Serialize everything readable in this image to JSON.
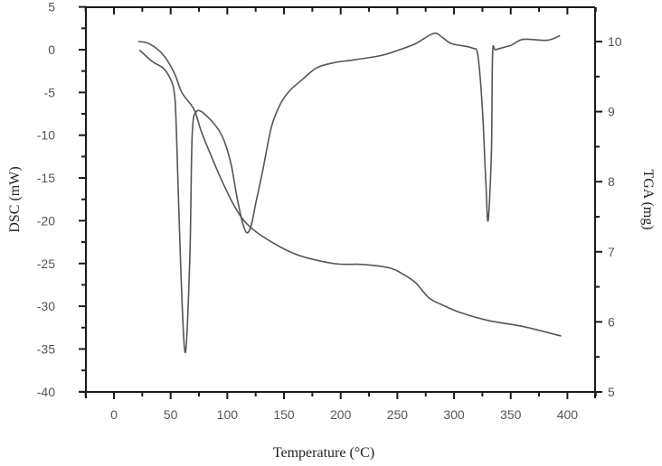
{
  "chart_data": {
    "type": "line",
    "title": "",
    "xlabel": "Temperature (°C)",
    "ylabel": "DSC (mW)",
    "y2label": "TGA (mg)",
    "xlim": [
      -25,
      425
    ],
    "ylim": [
      -40,
      5
    ],
    "y2lim": [
      5,
      10.5
    ],
    "grid": false,
    "legend": null,
    "x_ticks": [
      0,
      50,
      100,
      150,
      200,
      250,
      300,
      350,
      400
    ],
    "y_ticks": [
      5,
      0,
      -5,
      -10,
      -15,
      -20,
      -25,
      -30,
      -35,
      -40
    ],
    "y2_ticks": [
      10,
      9,
      8,
      7,
      6,
      5
    ],
    "series": [
      {
        "name": "DSC",
        "axis": "left",
        "x": [
          23,
          34,
          43,
          49,
          53,
          55,
          59,
          63,
          67,
          69,
          73,
          83,
          95,
          103,
          108,
          113,
          117,
          121,
          125,
          131,
          139,
          147,
          155,
          167,
          179,
          195,
          211,
          235,
          250,
          266,
          282,
          290,
          298,
          316,
          321,
          325,
          328,
          330,
          333,
          334,
          337,
          350,
          361,
          382,
          393
        ],
        "values": [
          -0.1,
          -1.4,
          -2.1,
          -3.2,
          -4.8,
          -9,
          -26,
          -35.4,
          -24,
          -10,
          -7.2,
          -7.9,
          -10,
          -13.2,
          -16.9,
          -20,
          -21.4,
          -20.6,
          -18,
          -14.3,
          -9,
          -6.3,
          -4.8,
          -3.4,
          -2.1,
          -1.5,
          -1.2,
          -0.7,
          -0.1,
          0.7,
          1.9,
          1.4,
          0.7,
          0.2,
          -0.7,
          -6.9,
          -15.3,
          -20,
          -12,
          -0.5,
          0,
          0.5,
          1.2,
          1.1,
          1.6
        ]
      },
      {
        "name": "TGA",
        "axis": "right",
        "x": [
          22,
          31,
          43,
          53,
          59,
          63,
          71,
          77,
          85,
          95,
          107,
          119,
          139,
          163,
          195,
          219,
          243,
          254,
          266,
          278,
          290,
          306,
          330,
          362,
          394
        ],
        "values": [
          10.0,
          9.97,
          9.82,
          9.56,
          9.3,
          9.2,
          9.02,
          8.72,
          8.4,
          8.02,
          7.63,
          7.37,
          7.14,
          6.95,
          6.83,
          6.82,
          6.77,
          6.69,
          6.56,
          6.34,
          6.24,
          6.13,
          6.02,
          5.93,
          5.8
        ]
      }
    ]
  },
  "colors": {
    "axis": "#1a1a1a",
    "curve": "#555555",
    "tick_label": "#555555"
  }
}
